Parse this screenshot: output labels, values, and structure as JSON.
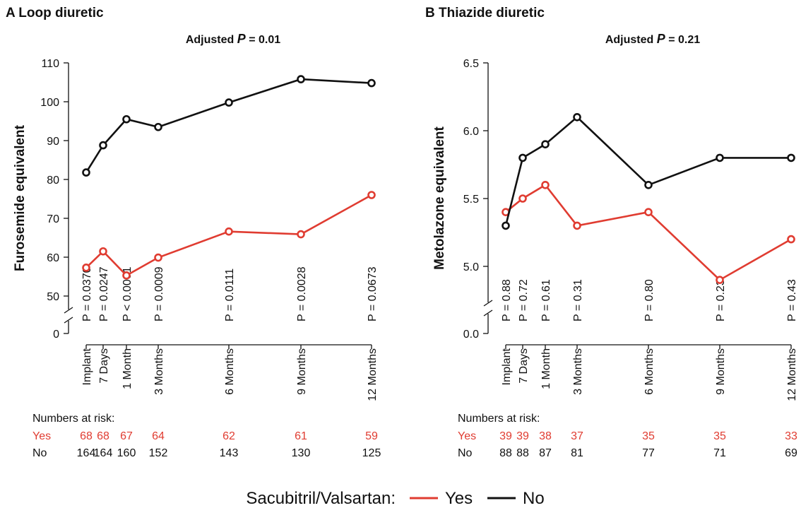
{
  "colors": {
    "yes": "#e03c31",
    "no": "#111111"
  },
  "legend": {
    "title": "Sacubitril/Valsartan:",
    "yes_label": "Yes",
    "no_label": "No"
  },
  "chart_data": [
    {
      "type": "line",
      "panel_title": "A Loop diuretic",
      "adjusted_prefix": "Adjusted",
      "adjusted_p_symbol": "P",
      "adjusted_p_value": " = 0.01",
      "ylabel": "Furosemide equivalent",
      "categories": [
        "Implant",
        "7 Days",
        "1 Month",
        "3 Months",
        "6 Months",
        "9 Months",
        "12 Months"
      ],
      "x_months": [
        0,
        0.23,
        1,
        3,
        6,
        9,
        12
      ],
      "y_axis_break": true,
      "yticks": [
        0,
        50,
        60,
        70,
        80,
        90,
        100,
        110
      ],
      "ylim": [
        50,
        110
      ],
      "series": [
        {
          "name": "Yes",
          "values": [
            57.3,
            61.5,
            55.3,
            59.9,
            66.6,
            65.9,
            76.0
          ]
        },
        {
          "name": "No",
          "values": [
            81.8,
            88.8,
            95.5,
            93.5,
            99.8,
            105.8,
            104.8
          ]
        }
      ],
      "p_values": [
        "P = 0.0370",
        "P = 0.0247",
        "P < 0.0001",
        "P = 0.0009",
        "P = 0.0111",
        "P = 0.0028",
        "P = 0.0673"
      ],
      "risk_title": "Numbers at risk:",
      "risk": {
        "yes_label": "Yes",
        "no_label": "No",
        "yes": [
          "68",
          "68",
          "67",
          "64",
          "62",
          "61",
          "59"
        ],
        "no": [
          "164",
          "164",
          "160",
          "152",
          "143",
          "130",
          "125"
        ]
      }
    },
    {
      "type": "line",
      "panel_title": "B Thiazide diuretic",
      "adjusted_prefix": "Adjusted",
      "adjusted_p_symbol": "P",
      "adjusted_p_value": " = 0.21",
      "ylabel": "Metolazone equivalent",
      "categories": [
        "Implant",
        "7 Days",
        "1 Month",
        "3 Months",
        "6 Months",
        "9 Months",
        "12 Months"
      ],
      "x_months": [
        0,
        0.23,
        1,
        3,
        6,
        9,
        12
      ],
      "y_axis_break": true,
      "yticks": [
        0.0,
        5.0,
        5.5,
        6.0,
        6.5
      ],
      "yticklabels": [
        "0.0",
        "5.0",
        "5.5",
        "6.0",
        "6.5"
      ],
      "ylim": [
        5.0,
        6.5
      ],
      "series": [
        {
          "name": "Yes",
          "values": [
            5.4,
            5.5,
            5.6,
            5.3,
            5.4,
            4.9,
            5.2
          ]
        },
        {
          "name": "No",
          "values": [
            5.3,
            5.8,
            5.9,
            6.1,
            5.6,
            5.8,
            5.8
          ]
        }
      ],
      "p_values": [
        "P = 0.88",
        "P = 0.72",
        "P = 0.61",
        "P = 0.31",
        "P = 0.80",
        "P = 0.23",
        "P = 0.43"
      ],
      "risk_title": "Numbers at risk:",
      "risk": {
        "yes_label": "Yes",
        "no_label": "No",
        "yes": [
          "39",
          "39",
          "38",
          "37",
          "35",
          "35",
          "33"
        ],
        "no": [
          "88",
          "88",
          "87",
          "81",
          "77",
          "71",
          "69"
        ]
      }
    }
  ]
}
